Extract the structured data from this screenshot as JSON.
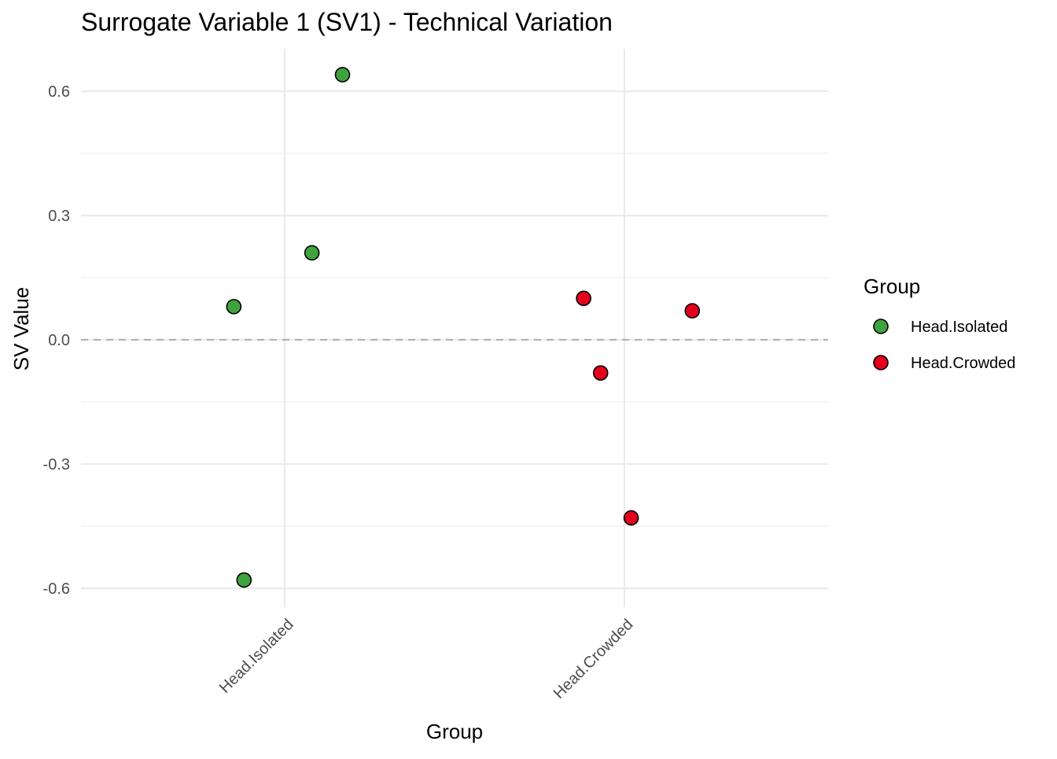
{
  "chart_data": {
    "type": "scatter",
    "title": "Surrogate Variable 1 (SV1) - Technical Variation",
    "xlabel": "Group",
    "ylabel": "SV Value",
    "categories": [
      "Head.Isolated",
      "Head.Crowded"
    ],
    "y_ticks": [
      0.6,
      0.3,
      0.0,
      -0.3,
      -0.6
    ],
    "y_tick_labels": [
      "0.6",
      "0.3",
      "0.0",
      "-0.3",
      "-0.6"
    ],
    "ylim": [
      -0.65,
      0.7
    ],
    "grid": true,
    "reference_line": {
      "y": 0.0,
      "style": "dashed",
      "color": "#b3b3b3"
    },
    "legend": {
      "title": "Group",
      "placement": "right",
      "entries": [
        {
          "label": "Head.Isolated",
          "color": "#3ea33e"
        },
        {
          "label": "Head.Crowded",
          "color": "#e3001b"
        }
      ]
    },
    "series": [
      {
        "name": "Head.Isolated",
        "color": "#3ea33e",
        "points": [
          {
            "x": 0.85,
            "y": 0.08
          },
          {
            "x": 0.88,
            "y": -0.58
          },
          {
            "x": 1.08,
            "y": 0.21
          },
          {
            "x": 1.17,
            "y": 0.64
          }
        ]
      },
      {
        "name": "Head.Crowded",
        "color": "#e3001b",
        "points": [
          {
            "x": 1.88,
            "y": 0.1
          },
          {
            "x": 1.93,
            "y": -0.08
          },
          {
            "x": 2.02,
            "y": -0.43
          },
          {
            "x": 2.2,
            "y": 0.07
          }
        ]
      }
    ]
  }
}
